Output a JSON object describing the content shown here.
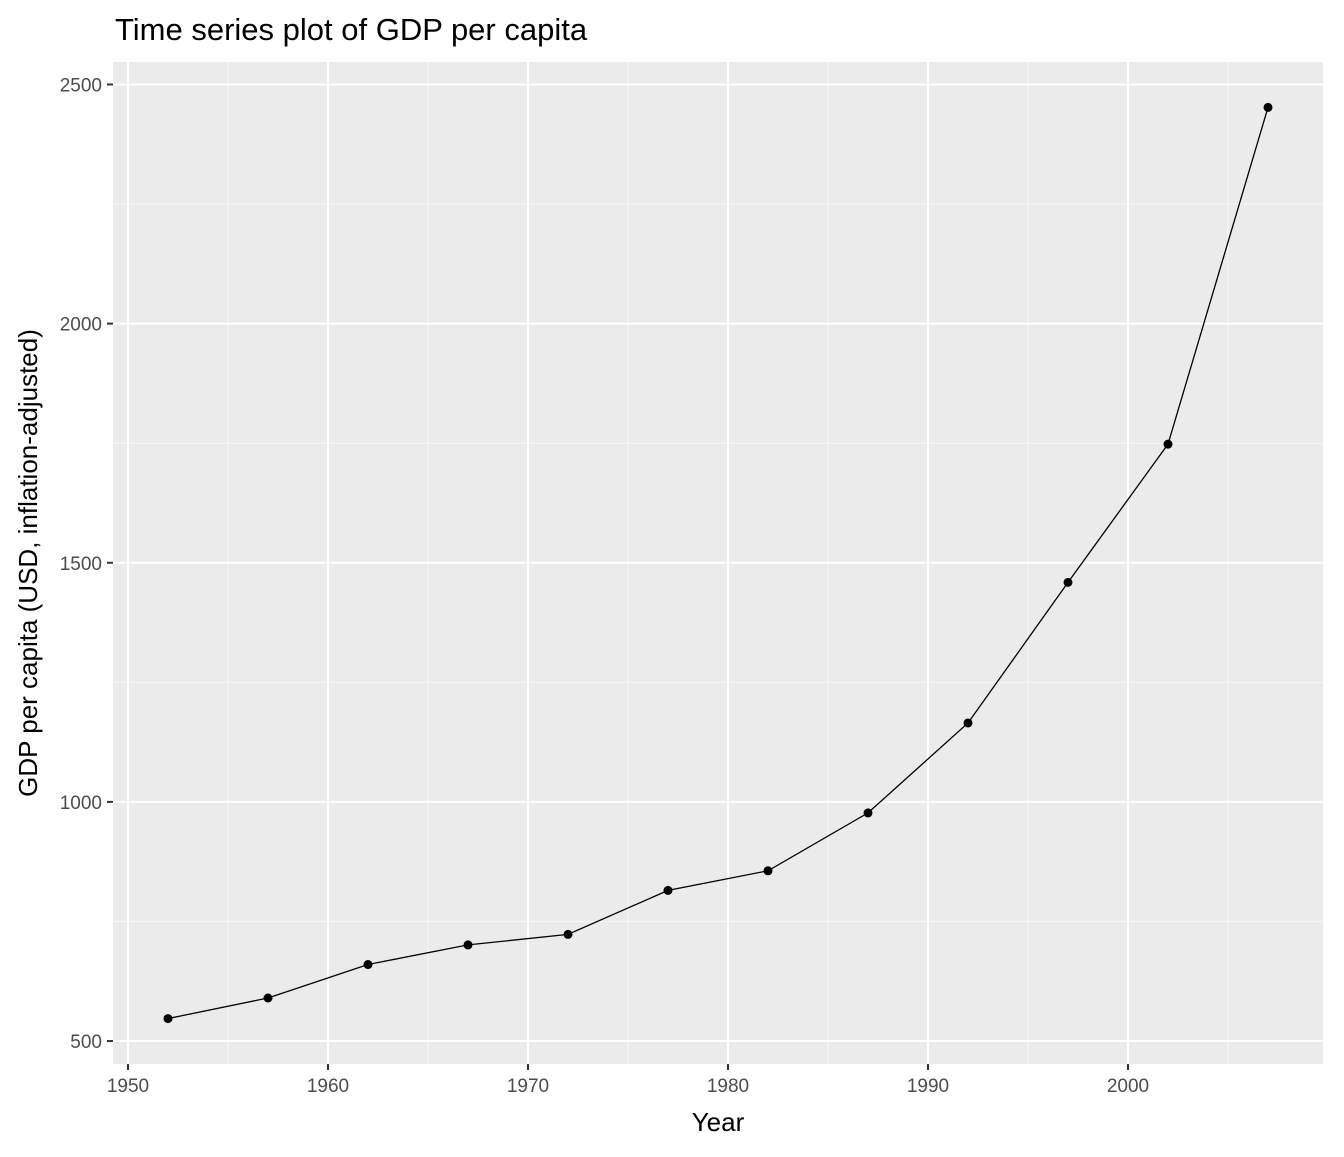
{
  "chart_data": {
    "type": "line",
    "title": "Time series plot of GDP per capita",
    "xlabel": "Year",
    "ylabel": "GDP per capita (USD, inflation-adjusted)",
    "x": [
      1952,
      1957,
      1962,
      1967,
      1972,
      1977,
      1982,
      1987,
      1992,
      1997,
      2002,
      2007
    ],
    "series": [
      {
        "values": [
          547,
          590,
          660,
          701,
          723,
          815,
          856,
          977,
          1165,
          1459,
          1748,
          2452
        ]
      }
    ],
    "xlim": [
      1949.25,
      2009.75
    ],
    "ylim": [
      452,
      2547
    ],
    "x_ticks": [
      1950,
      1960,
      1970,
      1980,
      1990,
      2000
    ],
    "x_tick_labels": [
      "1950",
      "1960",
      "1970",
      "1980",
      "1990",
      "2000"
    ],
    "x_minor_ticks": [
      1955,
      1965,
      1975,
      1985,
      1995,
      2005
    ],
    "y_ticks": [
      500,
      1000,
      1500,
      2000,
      2500
    ],
    "y_tick_labels": [
      "500",
      "1000",
      "1500",
      "2000",
      "2500"
    ],
    "y_minor_ticks": [
      750,
      1250,
      1750,
      2250
    ],
    "grid": true,
    "legend": "none",
    "colors": {
      "panel_background": "#ebebeb",
      "grid_major": "#ffffff",
      "grid_minor": "#f7f7f7",
      "line": "#000000",
      "point": "#000000",
      "tick": "#333333"
    }
  }
}
